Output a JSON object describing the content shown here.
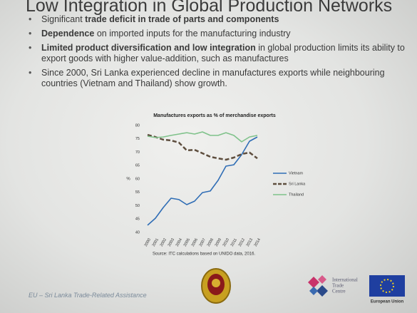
{
  "slide": {
    "title": "Low Integration in Global Production Networks",
    "bullets": [
      [
        {
          "text": "Significant ",
          "bold": false
        },
        {
          "text": "trade deficit in trade of parts and components",
          "bold": true
        }
      ],
      [
        {
          "text": "Dependence",
          "bold": true
        },
        {
          "text": " on imported inputs for the manufacturing industry",
          "bold": false
        }
      ],
      [
        {
          "text": "Limited product diversification and low integration",
          "bold": true
        },
        {
          "text": " in global production limits its ability to export goods with higher value-addition, such as manufactures",
          "bold": false
        }
      ],
      [
        {
          "text": "Since 2000, Sri Lanka experienced decline in manufactures exports while neighbouring countries (Vietnam and Thailand) show  growth.",
          "bold": false
        }
      ]
    ],
    "footer": "EU – Sri Lanka Trade-Related Assistance",
    "itc_logo": [
      "International",
      "Trade",
      "Centre"
    ],
    "eu_logo": "European Union"
  },
  "chart_data": {
    "type": "line",
    "title": "Manufactures exports as % of merchandise exports",
    "y_label": "%",
    "categories": [
      "2000",
      "2001",
      "2002",
      "2003",
      "2004",
      "2005",
      "2006",
      "2007",
      "2008",
      "2009",
      "2010",
      "2011",
      "2012",
      "2013",
      "2014"
    ],
    "series": [
      {
        "name": "Vietnam",
        "color": "#2f6db5",
        "dashed": false,
        "values": [
          42.7,
          45.3,
          49.3,
          52.8,
          52.3,
          50.4,
          51.7,
          54.9,
          55.5,
          59.5,
          64.8,
          65.3,
          69.1,
          74.1,
          75.7
        ]
      },
      {
        "name": "Sri Lanka",
        "color": "#5e4e3e",
        "dashed": true,
        "values": [
          76.5,
          75.7,
          74.7,
          74.4,
          73.6,
          70.7,
          70.9,
          69.6,
          68.3,
          67.7,
          67.2,
          68.0,
          69.3,
          69.9,
          67.7
        ]
      },
      {
        "name": "Thailand",
        "color": "#7fc28a",
        "dashed": false,
        "values": [
          76.0,
          75.5,
          75.7,
          76.3,
          76.8,
          77.3,
          76.8,
          77.6,
          76.3,
          76.3,
          77.3,
          76.3,
          73.9,
          75.7,
          76.3
        ]
      }
    ],
    "ylim": [
      40,
      80
    ],
    "yticks": [
      40,
      45,
      50,
      55,
      60,
      65,
      70,
      75,
      80
    ],
    "grid": false,
    "legend": "right",
    "source": "Source: ITC calculations based on UNIDO data, 2016."
  }
}
